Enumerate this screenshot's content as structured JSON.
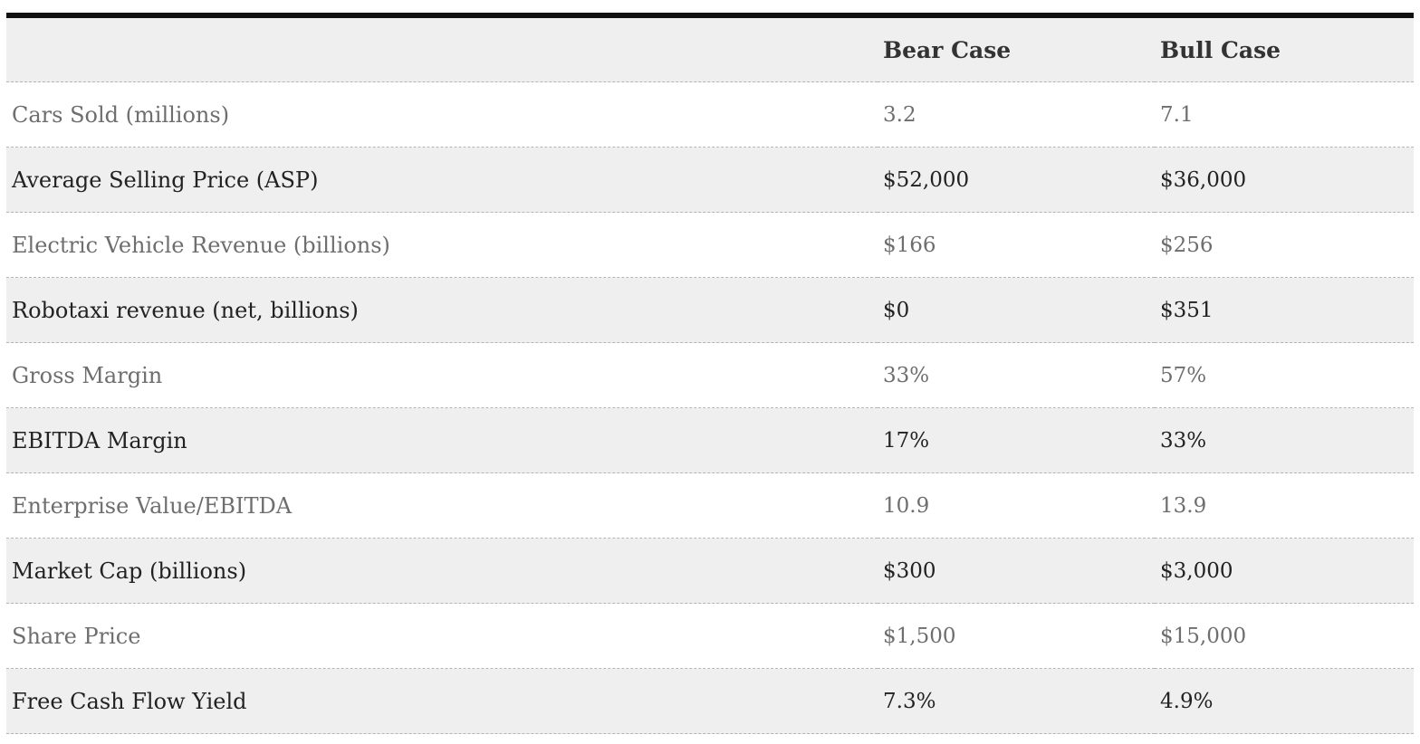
{
  "table": {
    "headers": [
      "",
      "Bear Case",
      "Bull Case"
    ],
    "rows": [
      {
        "label": "Cars Sold (millions)",
        "bear": "3.2",
        "bull": "7.1"
      },
      {
        "label": "Average Selling Price (ASP)",
        "bear": "$52,000",
        "bull": "$36,000"
      },
      {
        "label": "Electric Vehicle Revenue (billions)",
        "bear": "$166",
        "bull": "$256"
      },
      {
        "label": "Robotaxi revenue (net, billions)",
        "bear": "$0",
        "bull": "$351"
      },
      {
        "label": "Gross Margin",
        "bear": "33%",
        "bull": "57%"
      },
      {
        "label": "EBITDA Margin",
        "bear": "17%",
        "bull": "33%"
      },
      {
        "label": "Enterprise Value/EBITDA",
        "bear": "10.9",
        "bull": "13.9"
      },
      {
        "label": "Market Cap (billions)",
        "bear": "$300",
        "bull": "$3,000"
      },
      {
        "label": "Share Price",
        "bear": "$1,500",
        "bull": "$15,000"
      },
      {
        "label": "Free Cash Flow Yield",
        "bear": "7.3%",
        "bull": "4.9%"
      }
    ]
  },
  "colors": {
    "rule": "#111111",
    "stripe": "#efefef",
    "odd_text": "#6e6e6e",
    "even_text": "#222222"
  }
}
